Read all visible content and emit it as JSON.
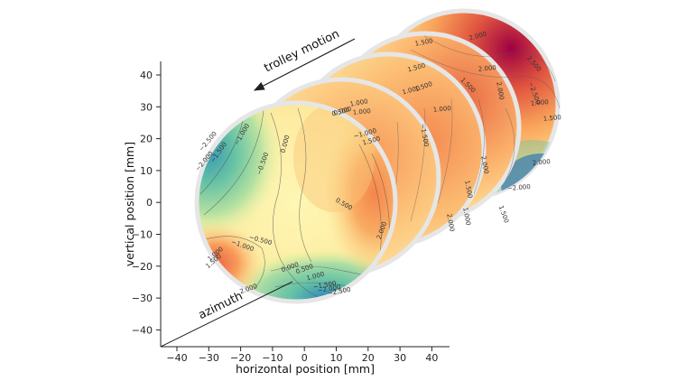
{
  "figure": {
    "x_axis_label": "horizontal position [mm]",
    "y_axis_label": "vertical position [mm]",
    "motion_label": "trolley motion",
    "depth_label": "azimuth",
    "x_ticks": [
      "−40",
      "−30",
      "−20",
      "−10",
      "0",
      "10",
      "20",
      "30",
      "40"
    ],
    "y_ticks": [
      "40",
      "30",
      "20",
      "10",
      "0",
      "−10",
      "−20",
      "−30",
      "−40"
    ],
    "contour_labels_front": [
      "−2.500",
      "−2.000",
      "−1.500",
      "−1.000",
      "−0.500",
      "0.000",
      "0.500",
      "1.000",
      "1.500",
      "2.000",
      "−1.000",
      "−0.500",
      "0.000",
      "0.500",
      "1.000",
      "−1.500",
      "−2.000",
      "−2.500",
      "1.000",
      "1.500",
      "2.000",
      "0.500"
    ],
    "contour_labels_back": [
      "1.500",
      "2.000",
      "2.500",
      "1.500",
      "2.000",
      "−2.500",
      "1.500",
      "1.000",
      "1.500",
      "2.000",
      "1.000",
      "1.000",
      "2.000",
      "1.500",
      "1.000",
      "0.000",
      "−1.000",
      "−1.500",
      "1.500",
      "2.000",
      "1.000",
      "1.500",
      "2.000",
      "−2.000"
    ]
  },
  "colors": {
    "disk_rim": "#e6e6e6",
    "low": "#3e5fb0",
    "mid": "#fdf7b6",
    "high": "#b3173e"
  }
}
